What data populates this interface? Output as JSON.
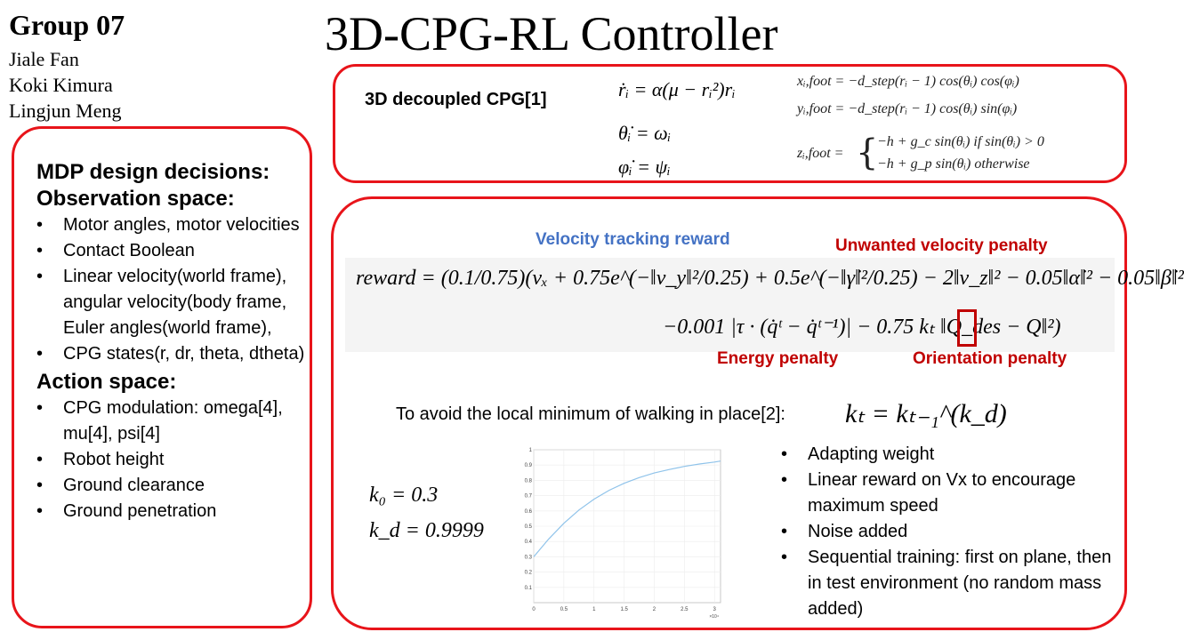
{
  "header": {
    "group": "Group 07",
    "members": [
      "Jiale Fan",
      "Koki Kimura",
      "Lingjun Meng"
    ],
    "title": "3D-CPG-RL Controller"
  },
  "mdp": {
    "heading": "MDP design decisions:",
    "observation_heading": "Observation space:",
    "observation_items": [
      "Motor angles, motor velocities",
      "Contact Boolean",
      "Linear velocity(world frame), angular velocity(body frame, Euler angles(world frame),",
      " CPG states(r, dr, theta, dtheta)"
    ],
    "action_heading": "Action space:",
    "action_items": [
      "CPG modulation: omega[4], mu[4], psi[4]",
      "Robot height",
      "Ground clearance",
      "Ground penetration"
    ]
  },
  "cpg": {
    "label": "3D decoupled CPG[1]",
    "eq_r": "ṙᵢ = α(μ − rᵢ²)rᵢ",
    "eq_theta": "θ̇ᵢ = ωᵢ",
    "eq_phi": "φ̇ᵢ = ψᵢ",
    "eq_x": "xᵢ,foot = −d_step(rᵢ − 1) cos(θᵢ) cos(φᵢ)",
    "eq_y": "yᵢ,foot = −d_step(rᵢ − 1) cos(θᵢ) sin(φᵢ)",
    "eq_z_lhs": "zᵢ,foot =",
    "eq_z_case1": "−h + g_c sin(θᵢ)   if sin(θᵢ) > 0",
    "eq_z_case2": "−h + g_p sin(θᵢ)   otherwise"
  },
  "reward": {
    "velocity_label": "Velocity tracking reward",
    "unwanted_label": "Unwanted velocity penalty",
    "energy_label": "Energy penalty",
    "orientation_label": "Orientation penalty",
    "line1": "reward = (0.1/0.75)(vₓ + 0.75e^(−‖v_y‖²/0.25) + 0.5e^(−‖γ̇‖²/0.25) − 2‖v_z‖² − 0.05‖α̇‖² − 0.05‖β̇‖²",
    "line2": "−0.001 |τ · (q̇ᵗ − q̇ᵗ⁻¹)| − 0.75 kₜ ‖Q_des − Q‖²)"
  },
  "curriculum": {
    "avoid_text": "To avoid the local minimum of walking in place[2]:",
    "kt_eq": "kₜ = kₜ₋₁^(k_d)",
    "k0": "k₀ = 0.3",
    "kd": "k_d = 0.9999"
  },
  "chart_data": {
    "type": "line",
    "x": [
      0,
      2500,
      5000,
      7500,
      10000,
      12500,
      15000,
      17500,
      20000,
      22500,
      25000,
      27500,
      30000,
      31000
    ],
    "series": [
      {
        "values": [
          0.3,
          0.417,
          0.519,
          0.606,
          0.677,
          0.735,
          0.781,
          0.818,
          0.848,
          0.871,
          0.891,
          0.907,
          0.92,
          0.926
        ]
      }
    ],
    "xticks": [
      "0",
      "0.5",
      "1",
      "1.5",
      "2",
      "2.5",
      "3"
    ],
    "yticks": [
      "0.1",
      "0.2",
      "0.3",
      "0.4",
      "0.5",
      "0.6",
      "0.7",
      "0.8",
      "0.9",
      "1"
    ],
    "x_exponent": "×10⁴",
    "xlim": [
      0,
      31000
    ],
    "ylim": [
      0,
      1
    ],
    "grid": true,
    "line_color": "#8fc3ea"
  },
  "notes": [
    "Adapting weight",
    "Linear reward on Vx to encourage maximum speed",
    "Noise added",
    "Sequential training: first on plane, then in test environment (no random mass added)"
  ],
  "colors": {
    "box_border": "#e8141a",
    "blue_label": "#4472c4",
    "red_label": "#c00000"
  }
}
